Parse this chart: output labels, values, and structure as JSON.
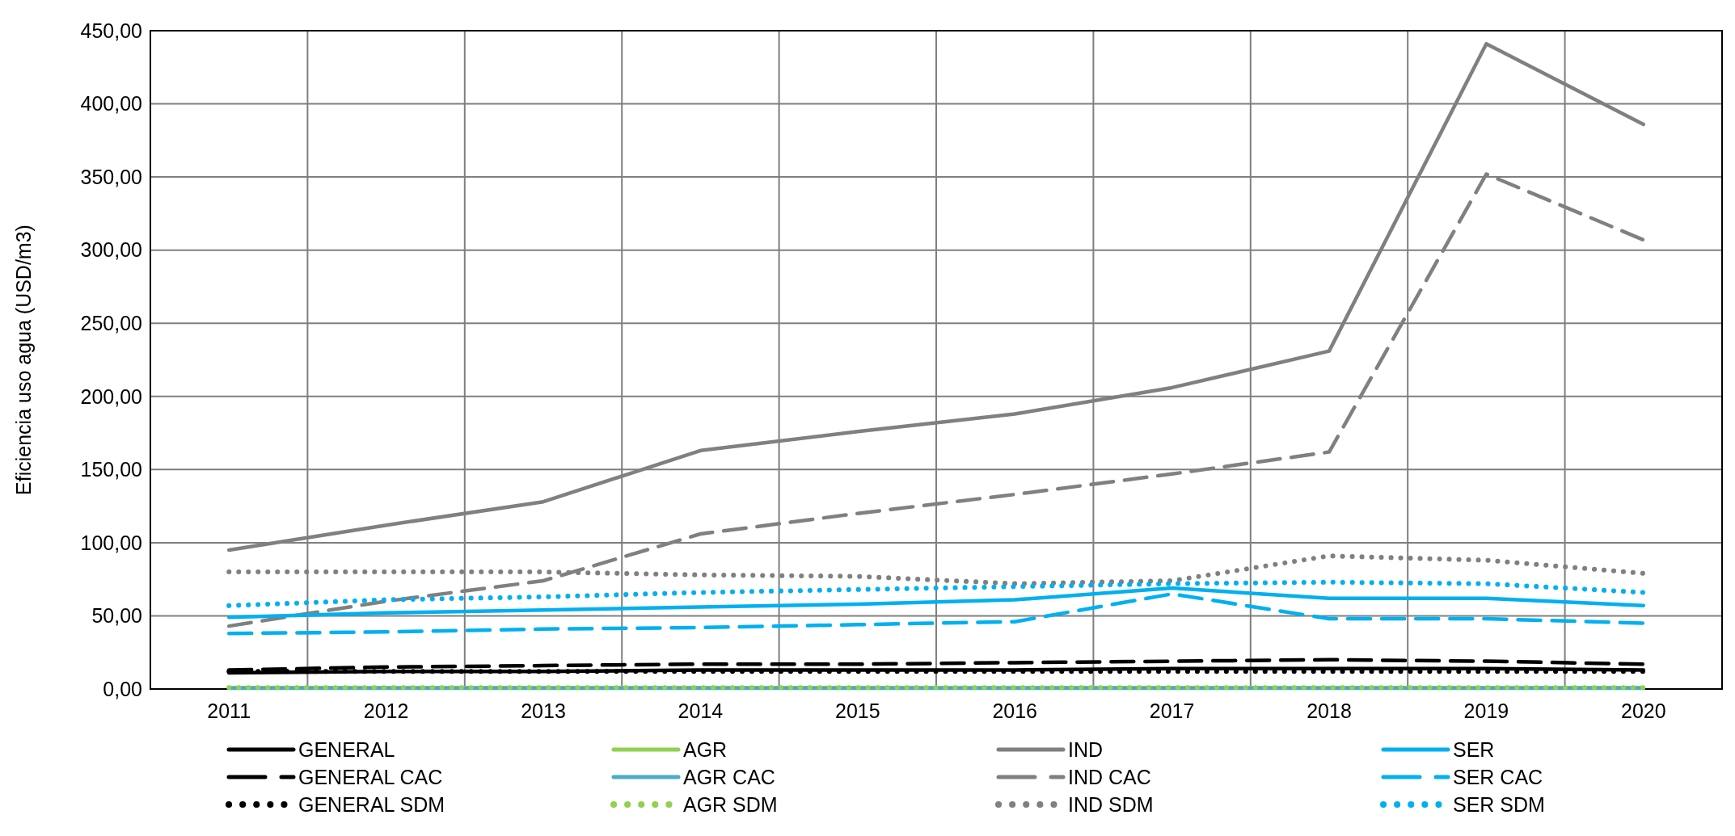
{
  "chart_data": {
    "type": "line",
    "ylabel": "Eficiencia uso agua (USD/m3)",
    "categories": [
      "2011",
      "2012",
      "2013",
      "2014",
      "2015",
      "2016",
      "2017",
      "2018",
      "2019",
      "2020"
    ],
    "ylim": [
      0,
      450
    ],
    "yticks": [
      {
        "value": 0,
        "label": "0,00"
      },
      {
        "value": 50,
        "label": "50,00"
      },
      {
        "value": 100,
        "label": "100,00"
      },
      {
        "value": 150,
        "label": "150,00"
      },
      {
        "value": 200,
        "label": "200,00"
      },
      {
        "value": 250,
        "label": "250,00"
      },
      {
        "value": 300,
        "label": "300,00"
      },
      {
        "value": 350,
        "label": "350,00"
      },
      {
        "value": 400,
        "label": "400,00"
      },
      {
        "value": 450,
        "label": "450,00"
      }
    ],
    "grid": true,
    "legend": "bottom",
    "marker": "none",
    "series": [
      {
        "name": "GENERAL",
        "color": "#000000",
        "line_style": "solid",
        "values": [
          11,
          12,
          12,
          13,
          13,
          13,
          14,
          14,
          14,
          13
        ]
      },
      {
        "name": "GENERAL CAC",
        "color": "#000000",
        "line_style": "dashed",
        "values": [
          13,
          15,
          16,
          17,
          17,
          18,
          19,
          20,
          19,
          17
        ]
      },
      {
        "name": "GENERAL SDM",
        "color": "#000000",
        "line_style": "dotted",
        "values": [
          12,
          12,
          12,
          12,
          12,
          12,
          12,
          12,
          12,
          12
        ]
      },
      {
        "name": "AGR",
        "color": "#92d050",
        "line_style": "solid",
        "values": [
          1,
          1,
          1,
          1,
          1,
          1,
          1,
          1,
          1,
          1
        ]
      },
      {
        "name": "AGR CAC",
        "color": "#4bacc6",
        "line_style": "solid",
        "values": [
          0.5,
          0.5,
          0.5,
          0.5,
          0.5,
          0.5,
          0.5,
          0.5,
          0.5,
          0.5
        ]
      },
      {
        "name": "AGR SDM",
        "color": "#92d050",
        "line_style": "dotted",
        "values": [
          1,
          1,
          1,
          1,
          1,
          1,
          1,
          1,
          1,
          1
        ]
      },
      {
        "name": "IND",
        "color": "#808080",
        "line_style": "solid",
        "values": [
          95,
          112,
          128,
          163,
          176,
          188,
          206,
          231,
          441,
          386
        ]
      },
      {
        "name": "IND CAC",
        "color": "#808080",
        "line_style": "dashed",
        "values": [
          43,
          60,
          74,
          106,
          120,
          133,
          147,
          162,
          352,
          307
        ]
      },
      {
        "name": "IND SDM",
        "color": "#808080",
        "line_style": "dotted",
        "values": [
          80,
          80,
          80,
          78,
          77,
          72,
          74,
          91,
          88,
          79
        ]
      },
      {
        "name": "SER",
        "color": "#00b0f0",
        "line_style": "solid",
        "values": [
          49,
          52,
          54,
          56,
          58,
          61,
          69,
          62,
          62,
          57
        ]
      },
      {
        "name": "SER CAC",
        "color": "#00b0f0",
        "line_style": "dashed",
        "values": [
          38,
          39,
          41,
          42,
          44,
          46,
          65,
          48,
          48,
          45
        ]
      },
      {
        "name": "SER SDM",
        "color": "#00b0f0",
        "line_style": "dotted",
        "values": [
          57,
          61,
          63,
          66,
          68,
          70,
          72,
          73,
          72,
          66
        ]
      }
    ]
  }
}
